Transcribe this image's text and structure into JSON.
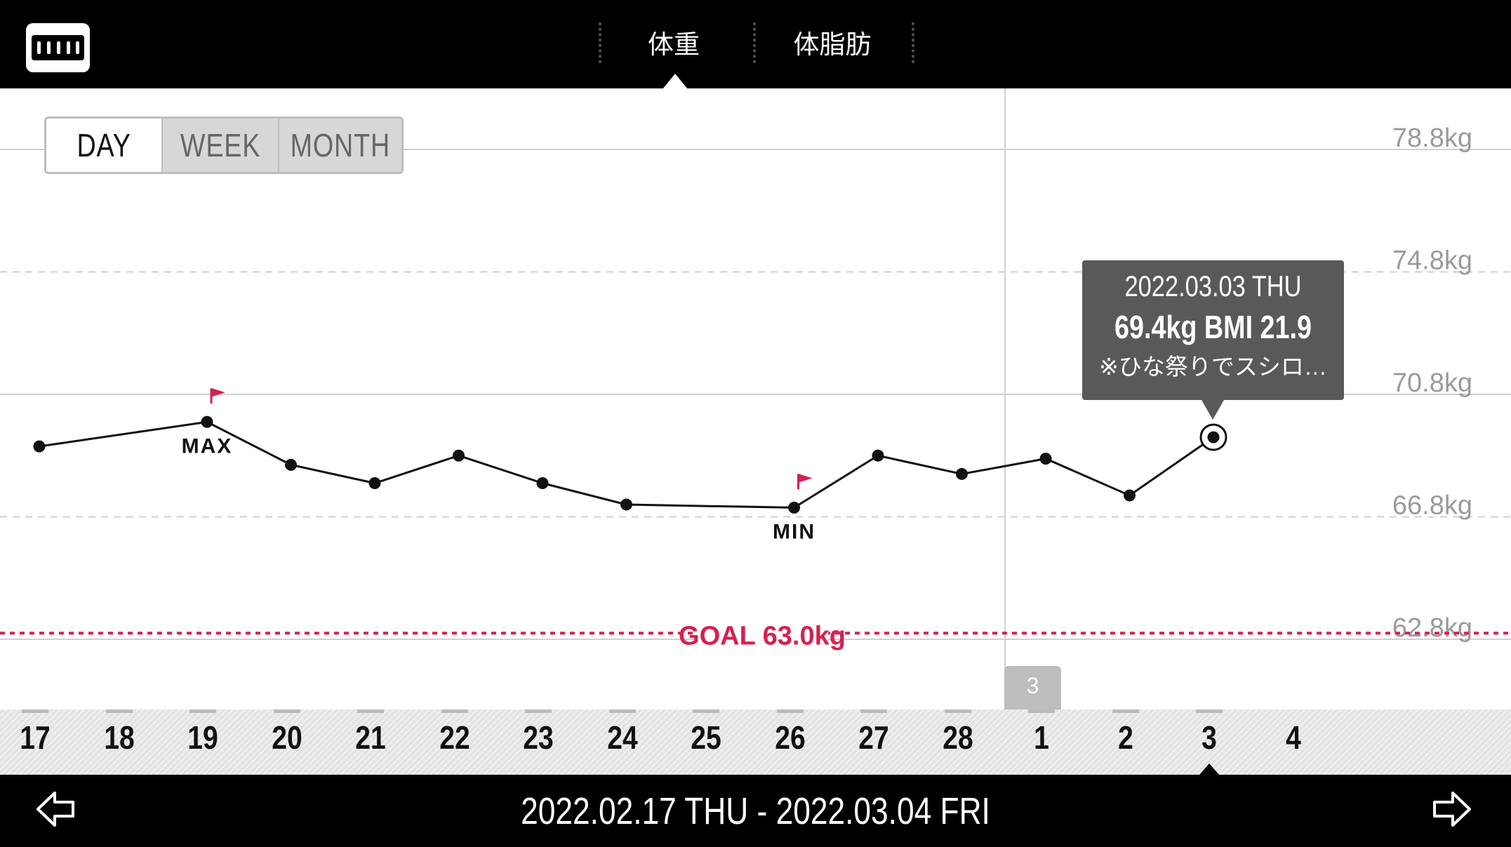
{
  "header": {
    "logo_icon": "app-logo-icon",
    "tabs": [
      {
        "label": "体重",
        "active": true
      },
      {
        "label": "体脂肪",
        "active": false
      }
    ]
  },
  "period_toggle": {
    "options": [
      "DAY",
      "WEEK",
      "MONTH"
    ],
    "selected": "DAY"
  },
  "chart_data": {
    "type": "line",
    "x": [
      "17",
      "18",
      "19",
      "20",
      "21",
      "22",
      "23",
      "24",
      "25",
      "26",
      "27",
      "28",
      "1",
      "2",
      "3",
      "4"
    ],
    "series": [
      {
        "values": [
          69.1,
          null,
          69.9,
          68.5,
          67.9,
          68.8,
          67.9,
          67.2,
          null,
          67.1,
          68.8,
          68.2,
          68.7,
          67.5,
          69.4,
          null
        ],
        "color": "#111111"
      }
    ],
    "y_ticks": [
      "78.8kg",
      "74.8kg",
      "70.8kg",
      "66.8kg",
      "62.8kg"
    ],
    "ylim": [
      62.8,
      78.8
    ],
    "goal": {
      "value": 63.0,
      "label": "GOAL 63.0kg",
      "color": "#d6204f"
    },
    "max_label": "MAX",
    "min_label": "MIN",
    "flag_color": "#d6204f",
    "month_divider_label": "3",
    "selected_index": 14
  },
  "tooltip": {
    "date": "2022.03.03 THU",
    "value": "69.4kg  BMI 21.9",
    "note": "※ひな祭りでスシロ…"
  },
  "footer": {
    "range": "2022.02.17 THU - 2022.03.04 FRI",
    "prev_icon": "arrow-left-icon",
    "next_icon": "arrow-right-icon"
  }
}
